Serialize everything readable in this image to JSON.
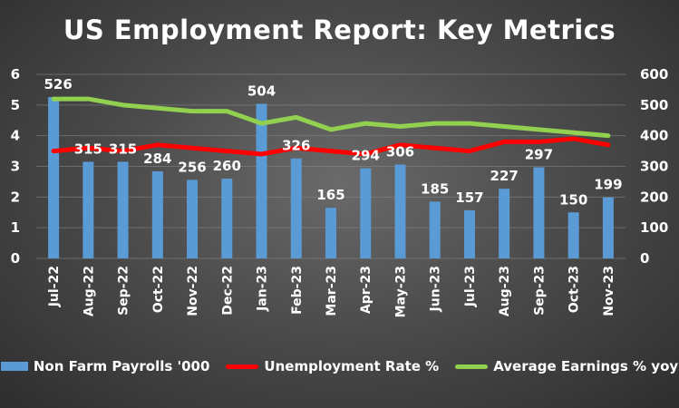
{
  "chart_data": {
    "type": "bar",
    "title": "US Employment Report: Key Metrics",
    "categories": [
      "Jul-22",
      "Aug-22",
      "Sep-22",
      "Oct-22",
      "Nov-22",
      "Dec-22",
      "Jan-23",
      "Feb-23",
      "Mar-23",
      "Apr-23",
      "May-23",
      "Jun-23",
      "Jul-23",
      "Aug-23",
      "Sep-23",
      "Oct-23",
      "Nov-23"
    ],
    "left_axis": {
      "ylim": [
        0,
        6
      ],
      "ticks": [
        "0",
        "1",
        "2",
        "3",
        "4",
        "5",
        "6"
      ]
    },
    "right_axis": {
      "ylim": [
        0,
        600
      ],
      "ticks": [
        "0",
        "100",
        "200",
        "300",
        "400",
        "500",
        "600"
      ]
    },
    "grid": true,
    "legend_placement": "bottom",
    "series": [
      {
        "name": "Non Farm Payrolls '000",
        "type": "bar",
        "axis": "right",
        "color": "#5b9bd5",
        "values": [
          526,
          315,
          315,
          284,
          256,
          260,
          504,
          326,
          165,
          294,
          306,
          185,
          157,
          227,
          297,
          150,
          199
        ],
        "labels": [
          "526",
          "315",
          "315",
          "284",
          "256",
          "260",
          "504",
          "326",
          "165",
          "294",
          "306",
          "185",
          "157",
          "227",
          "297",
          "150",
          "199"
        ]
      },
      {
        "name": "Unemployment Rate %",
        "type": "line",
        "axis": "left",
        "color": "#ff0000",
        "values": [
          3.5,
          3.6,
          3.5,
          3.7,
          3.6,
          3.5,
          3.4,
          3.6,
          3.5,
          3.4,
          3.7,
          3.6,
          3.5,
          3.8,
          3.8,
          3.9,
          3.7
        ]
      },
      {
        "name": "Average Earnings % yoy",
        "type": "line",
        "axis": "left",
        "color": "#92d050",
        "values": [
          5.2,
          5.2,
          5.0,
          4.9,
          4.8,
          4.8,
          4.4,
          4.6,
          4.2,
          4.4,
          4.3,
          4.4,
          4.4,
          4.3,
          4.2,
          4.1,
          4.0
        ]
      }
    ]
  }
}
